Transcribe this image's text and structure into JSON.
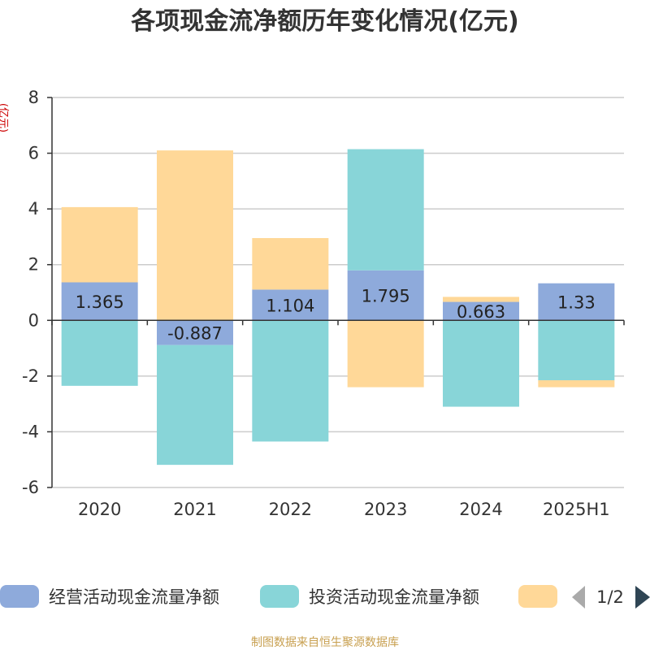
{
  "chart_data": {
    "type": "bar",
    "stacked": true,
    "title": "各项现金流净额历年变化情况(亿元)",
    "ylabel": "(亿元)",
    "xlabel": "",
    "categories": [
      "2020",
      "2021",
      "2022",
      "2023",
      "2024",
      "2025H1"
    ],
    "ylim": [
      -6,
      8
    ],
    "yticks": [
      -6,
      -4,
      -2,
      0,
      2,
      4,
      6,
      8
    ],
    "grid": true,
    "series": [
      {
        "name": "经营活动现金流量净额",
        "color": "#8eaadb",
        "values": [
          1.365,
          -0.887,
          1.104,
          1.795,
          0.663,
          1.33
        ],
        "labels": [
          "1.365",
          "-0.887",
          "1.104",
          "1.795",
          "0.663",
          "1.33"
        ]
      },
      {
        "name": "投资活动现金流量净额",
        "color": "#88d5d8",
        "values": [
          -2.35,
          -4.3,
          -4.35,
          4.35,
          -3.1,
          -2.15
        ]
      },
      {
        "color": "#ffd898",
        "values": [
          2.7,
          6.1,
          1.85,
          -2.4,
          0.18,
          -0.25
        ]
      }
    ],
    "legend": {
      "position": "bottom",
      "page": "1/2"
    },
    "source": "制图数据来自恒生聚源数据库"
  }
}
